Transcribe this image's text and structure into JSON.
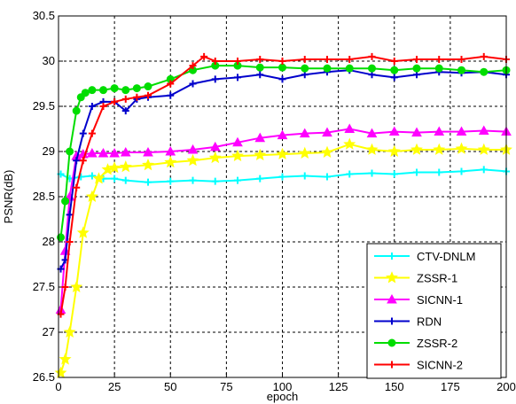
{
  "chart_data": {
    "type": "line",
    "title": "",
    "xlabel": "epoch",
    "ylabel": "PSNR(dB)",
    "xlim": [
      0,
      200
    ],
    "ylim": [
      26.5,
      30.5
    ],
    "xticks": [
      0,
      25,
      50,
      75,
      100,
      125,
      150,
      175,
      200
    ],
    "xtick_labels": [
      "0",
      "25",
      "50",
      "75",
      "100",
      "125",
      "150",
      "175",
      "200"
    ],
    "yticks": [
      26.5,
      27,
      27.5,
      28,
      28.5,
      29,
      29.5,
      30,
      30.5
    ],
    "ytick_labels": [
      "26.5",
      "27",
      "27.5",
      "28",
      "28.5",
      "29",
      "29.5",
      "30",
      "30.5"
    ],
    "grid": true,
    "legend_position": "bottom-right",
    "series": [
      {
        "name": "CTV-DNLM",
        "color": "#00ffff",
        "marker": "plus",
        "x": [
          1,
          5,
          10,
          15,
          20,
          25,
          30,
          40,
          50,
          60,
          70,
          80,
          90,
          100,
          110,
          120,
          130,
          140,
          150,
          160,
          170,
          180,
          190,
          200
        ],
        "values": [
          28.75,
          28.7,
          28.72,
          28.73,
          28.7,
          28.7,
          28.68,
          28.66,
          28.67,
          28.68,
          28.67,
          28.68,
          28.7,
          28.72,
          28.73,
          28.72,
          28.75,
          28.76,
          28.75,
          28.77,
          28.77,
          28.78,
          28.8,
          28.78
        ]
      },
      {
        "name": "ZSSR-1",
        "color": "#ffff00",
        "marker": "star",
        "x": [
          1,
          3,
          5,
          8,
          11,
          15,
          18,
          22,
          25,
          30,
          40,
          50,
          60,
          70,
          80,
          90,
          100,
          110,
          120,
          130,
          140,
          150,
          160,
          170,
          180,
          190,
          200
        ],
        "values": [
          26.55,
          26.7,
          27.0,
          27.5,
          28.1,
          28.5,
          28.7,
          28.8,
          28.82,
          28.83,
          28.85,
          28.88,
          28.9,
          28.93,
          28.95,
          28.96,
          28.97,
          28.98,
          28.99,
          29.08,
          29.02,
          29.0,
          29.02,
          29.02,
          29.03,
          29.02,
          29.02
        ]
      },
      {
        "name": "SICNN-1",
        "color": "#ff00ff",
        "marker": "triangle",
        "x": [
          1,
          3,
          5,
          8,
          11,
          15,
          20,
          25,
          30,
          40,
          50,
          60,
          70,
          80,
          90,
          100,
          110,
          120,
          130,
          140,
          150,
          160,
          170,
          180,
          190,
          200
        ],
        "values": [
          27.25,
          27.9,
          28.5,
          28.95,
          28.97,
          28.98,
          28.98,
          28.98,
          28.99,
          28.99,
          29.0,
          29.02,
          29.05,
          29.1,
          29.15,
          29.18,
          29.2,
          29.21,
          29.25,
          29.2,
          29.22,
          29.21,
          29.22,
          29.22,
          29.23,
          29.22
        ]
      },
      {
        "name": "RDN",
        "color": "#0000cc",
        "marker": "plus",
        "x": [
          1,
          3,
          5,
          8,
          11,
          15,
          20,
          25,
          30,
          35,
          40,
          50,
          60,
          70,
          80,
          90,
          100,
          110,
          120,
          130,
          140,
          150,
          160,
          170,
          180,
          190,
          200
        ],
        "values": [
          27.7,
          27.8,
          28.3,
          28.9,
          29.2,
          29.5,
          29.55,
          29.55,
          29.45,
          29.58,
          29.6,
          29.62,
          29.75,
          29.8,
          29.82,
          29.85,
          29.8,
          29.85,
          29.88,
          29.9,
          29.85,
          29.82,
          29.85,
          29.88,
          29.87,
          29.88,
          29.85
        ]
      },
      {
        "name": "ZSSR-2",
        "color": "#00dd00",
        "marker": "circle",
        "x": [
          1,
          3,
          5,
          8,
          10,
          12,
          15,
          20,
          25,
          30,
          35,
          40,
          50,
          60,
          70,
          80,
          90,
          100,
          110,
          120,
          130,
          140,
          150,
          160,
          170,
          180,
          190,
          200
        ],
        "values": [
          28.05,
          28.45,
          29.0,
          29.45,
          29.6,
          29.65,
          29.68,
          29.68,
          29.7,
          29.68,
          29.7,
          29.72,
          29.8,
          29.9,
          29.95,
          29.95,
          29.93,
          29.93,
          29.92,
          29.92,
          29.92,
          29.92,
          29.9,
          29.92,
          29.92,
          29.9,
          29.88,
          29.9
        ]
      },
      {
        "name": "SICNN-2",
        "color": "#ff0000",
        "marker": "plus",
        "x": [
          1,
          3,
          5,
          8,
          11,
          15,
          20,
          25,
          30,
          35,
          40,
          50,
          60,
          65,
          70,
          80,
          90,
          100,
          110,
          120,
          130,
          140,
          150,
          160,
          170,
          180,
          190,
          200
        ],
        "values": [
          27.2,
          27.5,
          28.0,
          28.6,
          28.9,
          29.2,
          29.5,
          29.55,
          29.58,
          29.6,
          29.62,
          29.75,
          29.95,
          30.05,
          30.0,
          30.0,
          30.02,
          30.0,
          30.02,
          30.02,
          30.02,
          30.05,
          30.0,
          30.02,
          30.02,
          30.02,
          30.05,
          30.02
        ]
      }
    ]
  }
}
